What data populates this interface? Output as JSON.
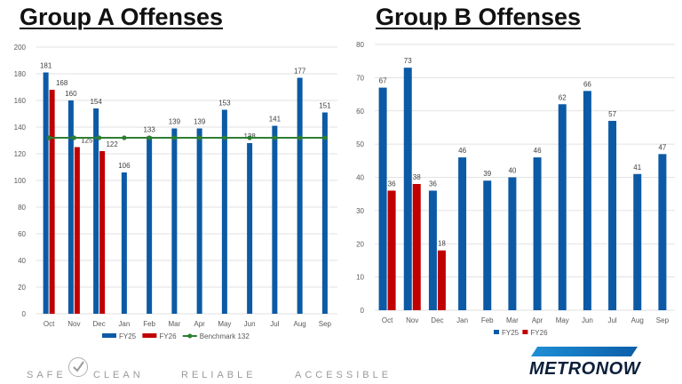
{
  "titles": {
    "a": "Group A Offenses",
    "b": "Group B Offenses"
  },
  "colors": {
    "fy25": "#0c5aa5",
    "fy26": "#c00000",
    "benchmark": "#2e7d32",
    "grid": "#d9d9d9",
    "axis_text": "#595959"
  },
  "chart_data": [
    {
      "type": "bar",
      "title": "Group A Offenses",
      "categories": [
        "Oct",
        "Nov",
        "Dec",
        "Jan",
        "Feb",
        "Mar",
        "Apr",
        "May",
        "Jun",
        "Jul",
        "Aug",
        "Sep"
      ],
      "series": [
        {
          "name": "FY25",
          "values": [
            181,
            160,
            154,
            106,
            133,
            139,
            139,
            153,
            128,
            141,
            177,
            151
          ]
        },
        {
          "name": "FY26",
          "values": [
            168,
            125,
            122,
            null,
            null,
            null,
            null,
            null,
            null,
            null,
            null,
            null
          ]
        }
      ],
      "benchmark": {
        "name": "Benchmark 132",
        "value": 132
      },
      "ylim": [
        0,
        200
      ],
      "yticks": [
        0,
        20,
        40,
        60,
        80,
        100,
        120,
        140,
        160,
        180,
        200
      ],
      "legend": [
        "FY25",
        "FY26",
        "Benchmark 132"
      ]
    },
    {
      "type": "bar",
      "title": "Group B Offenses",
      "categories": [
        "Oct",
        "Nov",
        "Dec",
        "Jan",
        "Feb",
        "Mar",
        "Apr",
        "May",
        "Jun",
        "Jul",
        "Aug",
        "Sep"
      ],
      "series": [
        {
          "name": "FY25",
          "values": [
            67,
            73,
            36,
            46,
            39,
            40,
            46,
            62,
            66,
            57,
            41,
            47
          ]
        },
        {
          "name": "FY26",
          "values": [
            36,
            38,
            18,
            null,
            null,
            null,
            null,
            null,
            null,
            null,
            null,
            null
          ]
        }
      ],
      "ylim": [
        0,
        80
      ],
      "yticks": [
        0,
        10,
        20,
        30,
        40,
        50,
        60,
        70,
        80
      ],
      "legend": [
        "FY25",
        "FY26"
      ]
    }
  ],
  "footer": {
    "tags": [
      "SAFE",
      "CLEAN",
      "RELIABLE",
      "ACCESSIBLE"
    ],
    "logo": "METRONOW"
  }
}
